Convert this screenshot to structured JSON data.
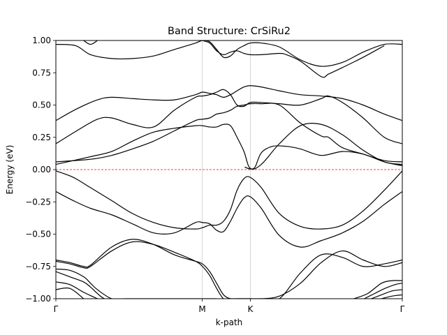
{
  "chart_data": {
    "type": "line",
    "title": "Band Structure: CrSiRu2",
    "xlabel": "k-path",
    "ylabel": "Energy (eV)",
    "ylim": [
      -1.0,
      1.0
    ],
    "xlim": [
      0,
      1
    ],
    "grid": false,
    "yticks": [
      -1.0,
      -0.75,
      -0.5,
      -0.25,
      0.0,
      0.25,
      0.5,
      0.75,
      1.0
    ],
    "ytick_labels": [
      "−1.00",
      "−0.75",
      "−0.50",
      "−0.25",
      "0.00",
      "0.25",
      "0.50",
      "0.75",
      "1.00"
    ],
    "kpoints": [
      {
        "label": "Γ",
        "x": 0.0
      },
      {
        "label": "M",
        "x": 0.4225
      },
      {
        "label": "K",
        "x": 0.5614
      },
      {
        "label": "Γ",
        "x": 1.0
      }
    ],
    "fermi_level": 0.0,
    "colors": {
      "bands": "#000000",
      "fermi": "#ff0000",
      "kpoint_lines": "#cccccc"
    },
    "series": [
      {
        "x": [
          0,
          0.057,
          0.1,
          0.161,
          0.221,
          0.282,
          0.342,
          0.403,
          0.423,
          0.444,
          0.464,
          0.484,
          0.504,
          0.523,
          0.543,
          0.561,
          0.593,
          0.645,
          0.706,
          0.766,
          0.827,
          0.887,
          0.948,
          1.0
        ],
        "y": [
          0.97,
          0.96,
          0.89,
          0.86,
          0.86,
          0.88,
          0.93,
          0.98,
          1.0,
          0.99,
          0.93,
          0.87,
          0.88,
          0.93,
          0.96,
          0.98,
          0.98,
          0.95,
          0.85,
          0.8,
          0.83,
          0.91,
          0.97,
          0.97
        ]
      },
      {
        "x": [
          0.423,
          0.444,
          0.464,
          0.484,
          0.504,
          0.523,
          0.543,
          0.561,
          0.593,
          0.645,
          0.665,
          0.706,
          0.766,
          0.787,
          0.827,
          0.887,
          0.948
        ],
        "y": [
          1.0,
          0.98,
          0.92,
          0.89,
          0.91,
          0.92,
          0.9,
          0.89,
          0.89,
          0.9,
          0.89,
          0.84,
          0.72,
          0.74,
          0.79,
          0.87,
          0.96
        ]
      },
      {
        "x": [
          0,
          0.06,
          0.12,
          0.161,
          0.221,
          0.282,
          0.342,
          0.403,
          0.423,
          0.444,
          0.464,
          0.484,
          0.504,
          0.523,
          0.543,
          0.561,
          0.593,
          0.645,
          0.706,
          0.766,
          0.827,
          0.887,
          0.948,
          1.0
        ],
        "y": [
          0.38,
          0.47,
          0.54,
          0.56,
          0.55,
          0.54,
          0.54,
          0.58,
          0.6,
          0.59,
          0.58,
          0.56,
          0.58,
          0.61,
          0.64,
          0.65,
          0.64,
          0.61,
          0.58,
          0.57,
          0.55,
          0.5,
          0.43,
          0.38
        ]
      },
      {
        "x": [
          0,
          0.06,
          0.12,
          0.161,
          0.221,
          0.282,
          0.342,
          0.403,
          0.423,
          0.444,
          0.464,
          0.484,
          0.504,
          0.523,
          0.543,
          0.561,
          0.593,
          0.645,
          0.706,
          0.766,
          0.787,
          0.827,
          0.887,
          0.948,
          1.0
        ],
        "y": [
          0.2,
          0.3,
          0.39,
          0.4,
          0.35,
          0.33,
          0.46,
          0.56,
          0.57,
          0.58,
          0.6,
          0.62,
          0.58,
          0.5,
          0.49,
          0.52,
          0.52,
          0.51,
          0.5,
          0.55,
          0.57,
          0.52,
          0.4,
          0.25,
          0.2
        ]
      },
      {
        "x": [
          0,
          0.1,
          0.161,
          0.221,
          0.282,
          0.342,
          0.403,
          0.423,
          0.444,
          0.464,
          0.484,
          0.504,
          0.523,
          0.543,
          0.561,
          0.593,
          0.645,
          0.706,
          0.766,
          0.787,
          0.827,
          0.887,
          0.948,
          1.0
        ],
        "y": [
          0.06,
          0.08,
          0.11,
          0.16,
          0.22,
          0.3,
          0.38,
          0.39,
          0.4,
          0.43,
          0.44,
          0.46,
          0.49,
          0.5,
          0.51,
          0.51,
          0.5,
          0.36,
          0.26,
          0.25,
          0.17,
          0.12,
          0.07,
          0.06
        ]
      },
      {
        "x": [
          0,
          0.1,
          0.161,
          0.221,
          0.282,
          0.342,
          0.403,
          0.423,
          0.444,
          0.464,
          0.484,
          0.504,
          0.523,
          0.543,
          0.561,
          0.593,
          0.645,
          0.706,
          0.766,
          0.827,
          0.887,
          0.948,
          1.0
        ],
        "y": [
          0.04,
          0.1,
          0.14,
          0.22,
          0.29,
          0.32,
          0.34,
          0.34,
          0.33,
          0.33,
          0.35,
          0.34,
          0.25,
          0.14,
          0.01,
          0.04,
          0.2,
          0.34,
          0.35,
          0.27,
          0.15,
          0.06,
          0.04
        ]
      },
      {
        "x": [
          0.545,
          0.561,
          0.575,
          0.593,
          0.625,
          0.665,
          0.706,
          0.766,
          0.827,
          0.887,
          0.948,
          1.0
        ],
        "y": [
          0.02,
          0.005,
          0.02,
          0.13,
          0.18,
          0.18,
          0.16,
          0.11,
          0.14,
          0.12,
          0.06,
          0.03
        ]
      },
      {
        "x": [
          0,
          0.05,
          0.1,
          0.161,
          0.221,
          0.282,
          0.342,
          0.403,
          0.423,
          0.444,
          0.464,
          0.484,
          0.504,
          0.523,
          0.543,
          0.561,
          0.593,
          0.645,
          0.706,
          0.766,
          0.827,
          0.887,
          0.948,
          1.0
        ],
        "y": [
          -0.01,
          -0.06,
          -0.14,
          -0.24,
          -0.34,
          -0.41,
          -0.45,
          -0.46,
          -0.45,
          -0.43,
          -0.43,
          -0.4,
          -0.31,
          -0.16,
          -0.07,
          -0.06,
          -0.14,
          -0.34,
          -0.44,
          -0.46,
          -0.43,
          -0.32,
          -0.16,
          -0.01
        ]
      },
      {
        "x": [
          0,
          0.05,
          0.1,
          0.161,
          0.221,
          0.282,
          0.342,
          0.403,
          0.423,
          0.444,
          0.464,
          0.484,
          0.504,
          0.523,
          0.543,
          0.561,
          0.593,
          0.645,
          0.706,
          0.766,
          0.827,
          0.887,
          0.948,
          1.0
        ],
        "y": [
          -0.17,
          -0.24,
          -0.3,
          -0.35,
          -0.42,
          -0.49,
          -0.49,
          -0.41,
          -0.41,
          -0.42,
          -0.47,
          -0.48,
          -0.4,
          -0.3,
          -0.22,
          -0.21,
          -0.3,
          -0.51,
          -0.6,
          -0.55,
          -0.49,
          -0.4,
          -0.27,
          -0.17
        ]
      },
      {
        "x": [
          0,
          0.04,
          0.08,
          0.1,
          0.161,
          0.221,
          0.282,
          0.342,
          0.403,
          0.423,
          0.444,
          0.464,
          0.484,
          0.504,
          0.523,
          0.543,
          0.561,
          0.593,
          0.645,
          0.706,
          0.766,
          0.827,
          0.887,
          0.948,
          1.0
        ],
        "y": [
          -0.7,
          -0.72,
          -0.75,
          -0.74,
          -0.6,
          -0.54,
          -0.58,
          -0.66,
          -0.71,
          -0.73,
          -0.79,
          -0.88,
          -0.97,
          -1.0,
          -1.0,
          -1.0,
          -1.0,
          -1.0,
          -1.0,
          -0.8,
          -0.66,
          -0.68,
          -0.75,
          -0.73,
          -0.7
        ]
      },
      {
        "x": [
          0,
          0.04,
          0.08,
          0.1,
          0.161,
          0.221,
          0.282,
          0.342,
          0.403,
          0.423,
          0.444,
          0.464,
          0.484,
          0.504,
          0.523,
          0.543,
          0.561,
          0.593,
          0.645,
          0.706,
          0.766,
          0.827,
          0.887,
          0.948,
          1.0
        ],
        "y": [
          -0.71,
          -0.73,
          -0.76,
          -0.75,
          -0.63,
          -0.56,
          -0.58,
          -0.64,
          -0.71,
          -0.75,
          -0.82,
          -0.92,
          -1.0,
          -1.0,
          -1.0,
          -1.0,
          -1.0,
          -1.0,
          -0.98,
          -0.88,
          -0.72,
          -0.63,
          -0.7,
          -0.75,
          -0.72
        ]
      },
      {
        "x": [
          0,
          0.04,
          0.08,
          0.1,
          0.12,
          0.161,
          0.2,
          0.282,
          0.342,
          0.403,
          0.423,
          0.444,
          0.464
        ],
        "y": [
          -0.77,
          -0.78,
          -0.83,
          -0.88,
          -0.93,
          -1.0,
          -1.0,
          -1.0,
          -1.0,
          -1.0,
          -1.0,
          -1.0,
          -1.0
        ]
      },
      {
        "x": [
          0,
          0.04,
          0.08,
          0.1,
          0.12,
          0.14,
          0.161
        ],
        "y": [
          -0.79,
          -0.83,
          -0.87,
          -0.91,
          -0.96,
          -1.0,
          -1.0
        ]
      },
      {
        "x": [
          0,
          0.04,
          0.08,
          0.12
        ],
        "y": [
          -0.87,
          -0.89,
          -0.95,
          -1.0
        ]
      },
      {
        "x": [
          0,
          0.04,
          0.08
        ],
        "y": [
          -0.93,
          -0.92,
          -1.0
        ]
      },
      {
        "x": [
          0.86,
          0.9,
          0.94,
          0.97,
          1.0
        ],
        "y": [
          -1.0,
          -0.96,
          -0.88,
          -0.86,
          -0.86
        ]
      },
      {
        "x": [
          0.89,
          0.92,
          0.95,
          0.98,
          1.0
        ],
        "y": [
          -1.0,
          -0.96,
          -0.92,
          -0.89,
          -0.88
        ]
      },
      {
        "x": [
          0.91,
          0.94,
          0.97,
          1.0
        ],
        "y": [
          -1.0,
          -0.97,
          -0.94,
          -0.93
        ]
      },
      {
        "x": [
          0.94,
          0.97,
          1.0
        ],
        "y": [
          -1.0,
          -0.98,
          -0.97
        ]
      },
      {
        "x": [
          0.08,
          0.1,
          0.12
        ],
        "y": [
          1.0,
          0.97,
          1.0
        ]
      }
    ]
  }
}
